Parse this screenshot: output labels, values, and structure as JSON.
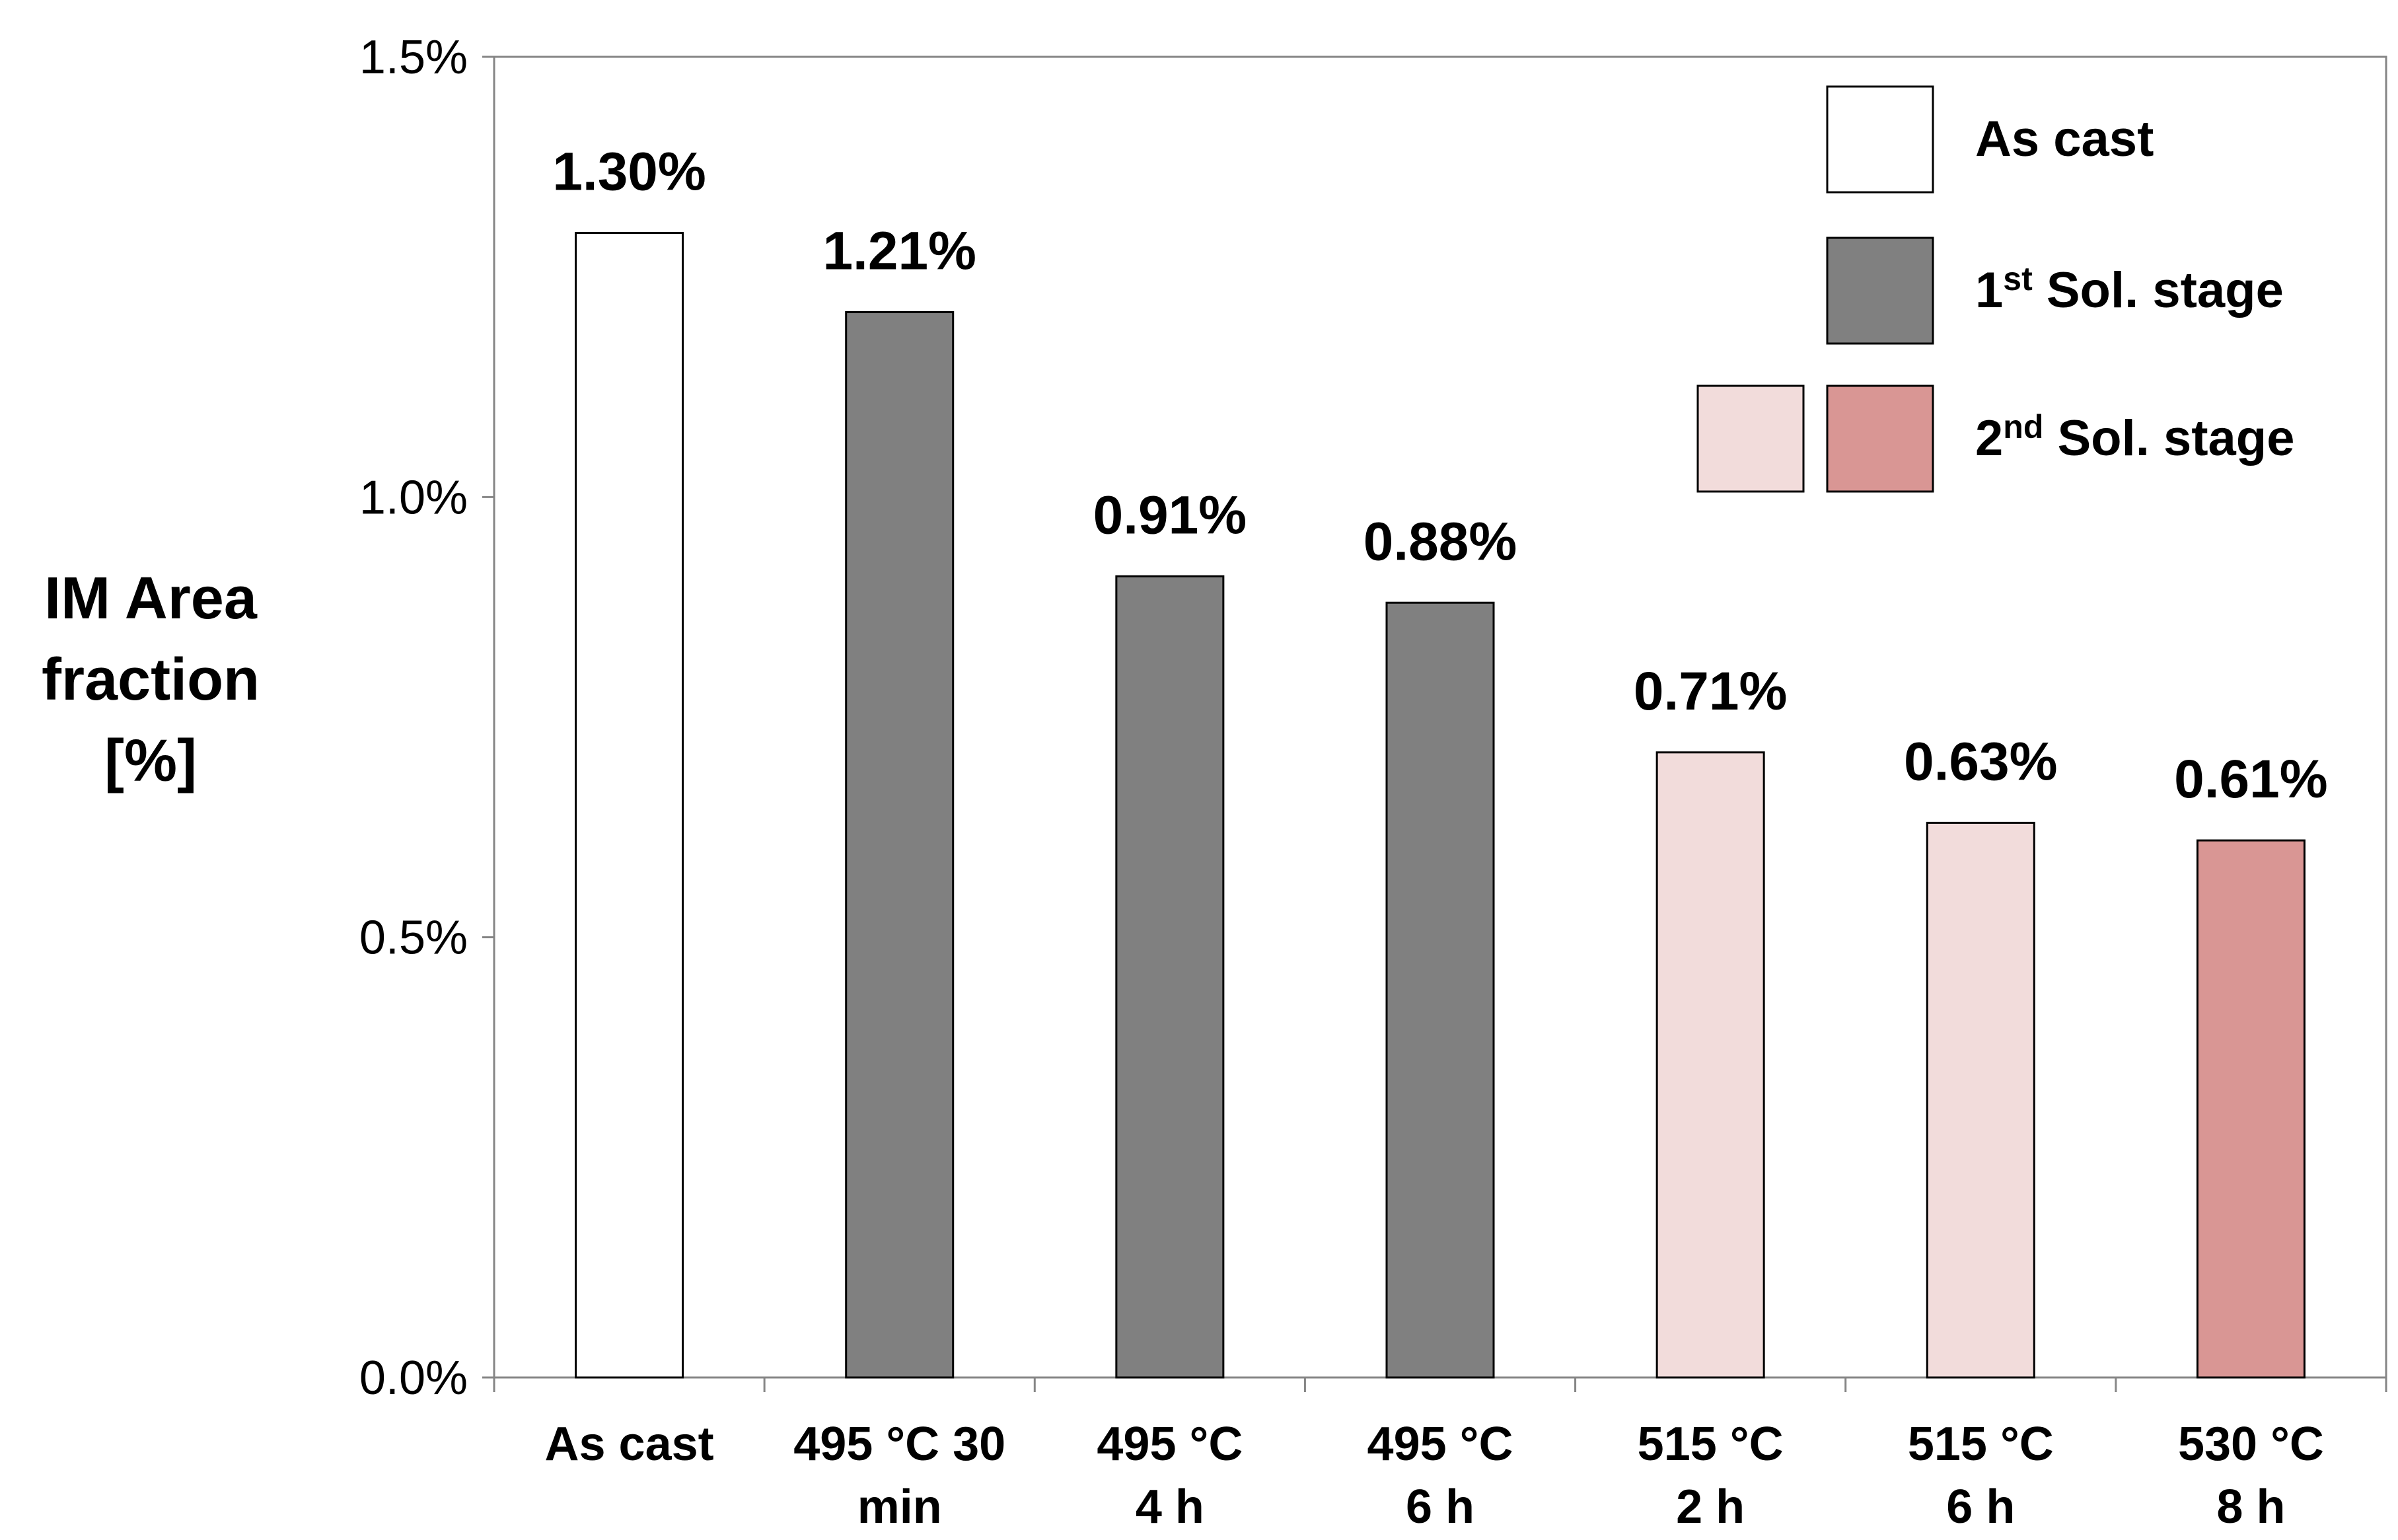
{
  "chart_data": {
    "type": "bar",
    "title": "",
    "xlabel": "",
    "ylabel": [
      "IM Area",
      "fraction",
      "[%]"
    ],
    "ylim": [
      0,
      1.5
    ],
    "yticks": [
      {
        "value": 0.0,
        "label": "0.0%"
      },
      {
        "value": 0.5,
        "label": "0.5%"
      },
      {
        "value": 1.0,
        "label": "1.0%"
      },
      {
        "value": 1.5,
        "label": "1.5%"
      }
    ],
    "categories": [
      [
        "As cast"
      ],
      [
        "495 °C 30",
        "min"
      ],
      [
        "495 °C",
        "4 h"
      ],
      [
        "495 °C",
        "6 h"
      ],
      [
        "515 °C",
        "2 h"
      ],
      [
        "515 °C",
        "6 h"
      ],
      [
        "530 °C",
        "8 h"
      ]
    ],
    "values": [
      1.3,
      1.21,
      0.91,
      0.88,
      0.71,
      0.63,
      0.61
    ],
    "data_labels": [
      "1.30%",
      "1.21%",
      "0.91%",
      "0.88%",
      "0.71%",
      "0.63%",
      "0.61%"
    ],
    "bar_groups": [
      "as_cast",
      "first",
      "first",
      "first",
      "second_light",
      "second_light",
      "second_dark"
    ],
    "colors": {
      "as_cast": "#ffffff",
      "first": "#808080",
      "second_light": "#f2dcdb",
      "second_dark": "#d99694",
      "outline": "#000000",
      "axis": "#868686"
    },
    "legend": {
      "placement": "top-right",
      "entries": [
        {
          "base": "As cast",
          "sup": "",
          "rest": "",
          "swatches": [
            "as_cast"
          ]
        },
        {
          "base": "1",
          "sup": "st",
          "rest": " Sol. stage",
          "swatches": [
            "first"
          ]
        },
        {
          "base": "2",
          "sup": "nd",
          "rest": " Sol. stage",
          "swatches": [
            "second_light",
            "second_dark"
          ]
        }
      ]
    },
    "grid": false
  }
}
